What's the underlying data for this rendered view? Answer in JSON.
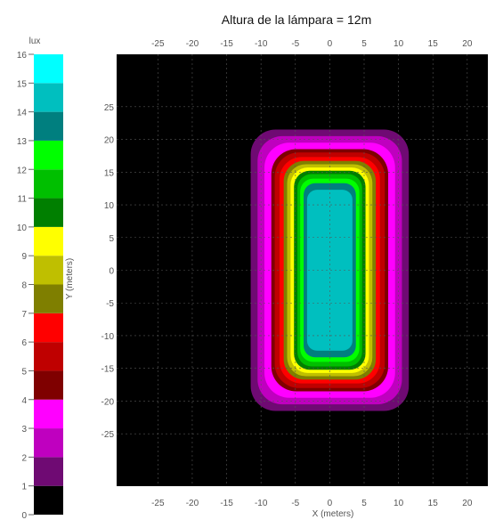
{
  "chart_data": {
    "type": "heatmap",
    "title": "Altura de la lámpara = 12m",
    "xlabel": "X (meters)",
    "ylabel": "Y (meters)",
    "colorbar_label": "lux",
    "xlim": [
      -31,
      23
    ],
    "ylim": [
      -33,
      33
    ],
    "x_ticks": [
      -25,
      -20,
      -15,
      -10,
      -5,
      0,
      5,
      10,
      15,
      20
    ],
    "y_ticks": [
      25,
      20,
      15,
      10,
      5,
      0,
      -5,
      -10,
      -15,
      -20,
      -25
    ],
    "colorbar_ticks": [
      16,
      15,
      14,
      13,
      12,
      11,
      10,
      9,
      8,
      7,
      6,
      5,
      4,
      3,
      2,
      1,
      0
    ],
    "grid": true,
    "background": "#000000",
    "levels": [
      {
        "from": 0,
        "to": 1,
        "color": "#000000"
      },
      {
        "from": 1,
        "to": 2,
        "color": "#6f0a73"
      },
      {
        "from": 2,
        "to": 3,
        "color": "#bf00bf"
      },
      {
        "from": 3,
        "to": 4,
        "color": "#ff00ff"
      },
      {
        "from": 4,
        "to": 5,
        "color": "#7f0000"
      },
      {
        "from": 5,
        "to": 6,
        "color": "#bf0000"
      },
      {
        "from": 6,
        "to": 7,
        "color": "#ff0000"
      },
      {
        "from": 7,
        "to": 8,
        "color": "#7f7f00"
      },
      {
        "from": 8,
        "to": 9,
        "color": "#bfbf00"
      },
      {
        "from": 9,
        "to": 10,
        "color": "#ffff00"
      },
      {
        "from": 10,
        "to": 11,
        "color": "#007f00"
      },
      {
        "from": 11,
        "to": 12,
        "color": "#00bf00"
      },
      {
        "from": 12,
        "to": 13,
        "color": "#00ff00"
      },
      {
        "from": 13,
        "to": 14,
        "color": "#007f7f"
      },
      {
        "from": 14,
        "to": 15,
        "color": "#00bfbf"
      },
      {
        "from": 15,
        "to": 16,
        "color": "#00ffff"
      }
    ],
    "contours": [
      {
        "level": 1,
        "x": [
          -11.5,
          11.5
        ],
        "y": [
          -21.5,
          21.5
        ]
      },
      {
        "level": 2,
        "x": [
          -10.5,
          10.5
        ],
        "y": [
          -20.5,
          20.5
        ]
      },
      {
        "level": 3,
        "x": [
          -9.5,
          9.5
        ],
        "y": [
          -19.5,
          19.5
        ]
      },
      {
        "level": 4,
        "x": [
          -8.5,
          8.5
        ],
        "y": [
          -18.5,
          18.5
        ]
      },
      {
        "level": 5,
        "x": [
          -8.0,
          8.0
        ],
        "y": [
          -18.0,
          18.0
        ]
      },
      {
        "level": 6,
        "x": [
          -7.3,
          7.3
        ],
        "y": [
          -17.3,
          17.3
        ]
      },
      {
        "level": 7,
        "x": [
          -6.7,
          6.7
        ],
        "y": [
          -16.7,
          16.7
        ]
      },
      {
        "level": 8,
        "x": [
          -6.2,
          6.2
        ],
        "y": [
          -16.2,
          16.2
        ]
      },
      {
        "level": 9,
        "x": [
          -5.7,
          5.7
        ],
        "y": [
          -15.7,
          15.7
        ]
      },
      {
        "level": 10,
        "x": [
          -5.2,
          5.2
        ],
        "y": [
          -15.2,
          15.2
        ]
      },
      {
        "level": 11,
        "x": [
          -4.7,
          4.7
        ],
        "y": [
          -14.7,
          14.7
        ]
      },
      {
        "level": 12,
        "x": [
          -4.3,
          4.3
        ],
        "y": [
          -14.0,
          14.0
        ]
      },
      {
        "level": 13,
        "x": [
          -3.8,
          3.8
        ],
        "y": [
          -13.3,
          13.3
        ]
      },
      {
        "level": 14,
        "x": [
          -3.3,
          3.3
        ],
        "y": [
          -12.3,
          12.3
        ]
      }
    ]
  }
}
